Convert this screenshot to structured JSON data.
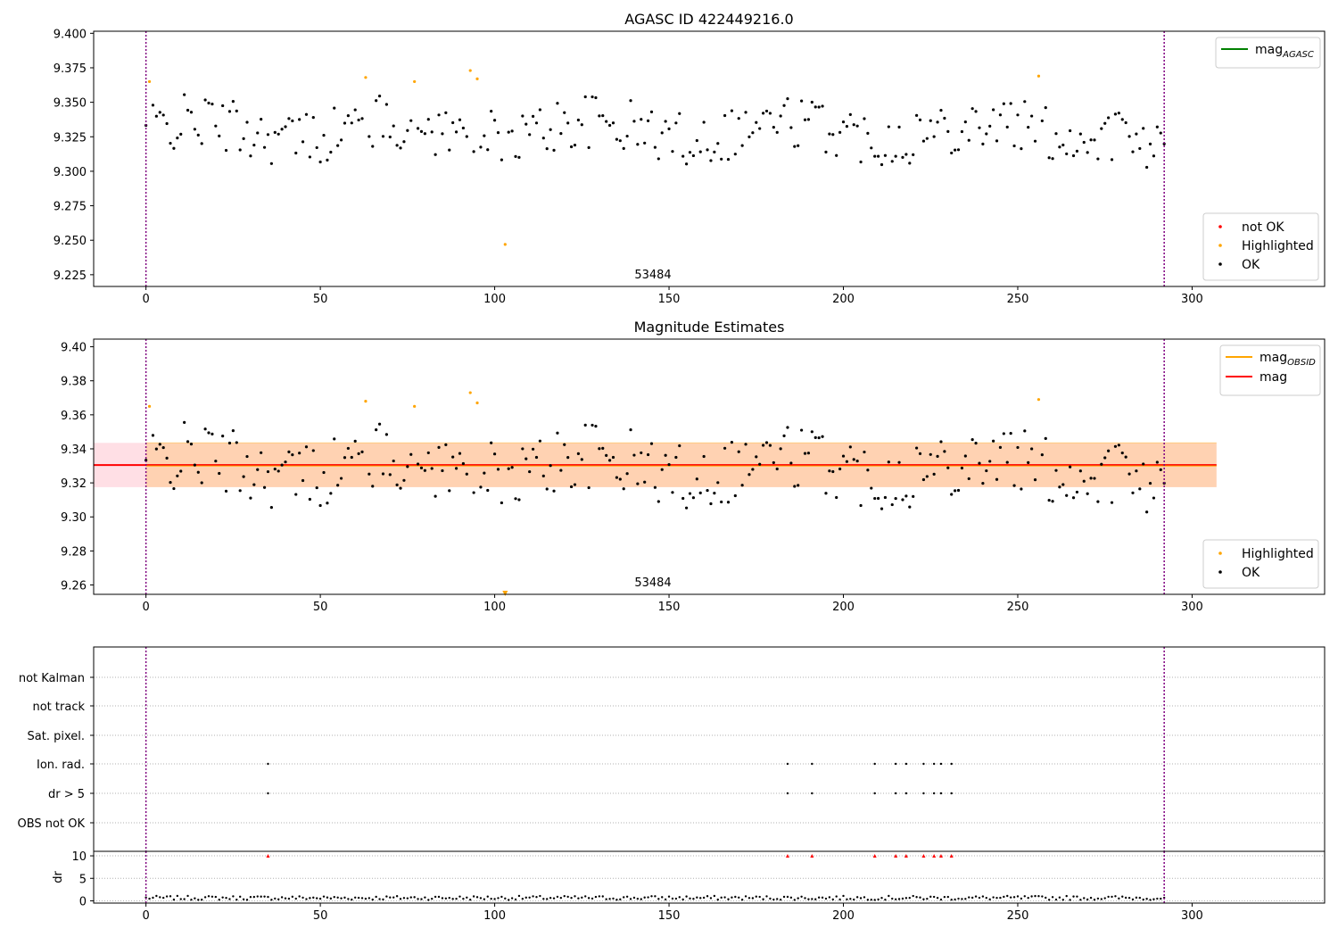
{
  "chart_data": [
    {
      "type": "scatter",
      "title": "AGASC ID 422449216.0",
      "annotation": "53484",
      "xlim": [
        -15,
        338
      ],
      "ylim": [
        9.2165,
        9.4015
      ],
      "xticks": [
        "0",
        "50",
        "100",
        "150",
        "200",
        "250",
        "300"
      ],
      "yticks": [
        "9.225",
        "9.250",
        "9.275",
        "9.300",
        "9.325",
        "9.350",
        "9.375",
        "9.400"
      ],
      "vlines": [
        0,
        292
      ],
      "legend_lines": [
        {
          "name": "mag",
          "subscript": "AGASC",
          "color": "#008000"
        }
      ],
      "legend_points": [
        {
          "name": "not OK",
          "color": "#ff0000"
        },
        {
          "name": "Highlighted",
          "color": "#ffa500"
        },
        {
          "name": "OK",
          "color": "#000000"
        }
      ],
      "highlighted": [
        [
          1,
          9.365
        ],
        [
          63,
          9.368
        ],
        [
          77,
          9.365
        ],
        [
          93,
          9.373
        ],
        [
          95,
          9.367
        ],
        [
          103,
          9.247
        ],
        [
          256,
          9.369
        ]
      ]
    },
    {
      "type": "scatter",
      "title": "Magnitude Estimates",
      "annotation": "53484",
      "xlim": [
        -15,
        338
      ],
      "ylim": [
        9.2545,
        9.4045
      ],
      "xticks": [
        "0",
        "50",
        "100",
        "150",
        "200",
        "250",
        "300"
      ],
      "yticks": [
        "9.26",
        "9.28",
        "9.30",
        "9.32",
        "9.34",
        "9.36",
        "9.38",
        "9.40"
      ],
      "vlines": [
        0,
        292
      ],
      "mag_line": 9.3305,
      "band": [
        9.3175,
        9.3435
      ],
      "band_xrange": [
        -15,
        307
      ],
      "band_inner_xrange": [
        0,
        307
      ],
      "legend_lines": [
        {
          "name": "mag",
          "subscript": "OBSID",
          "color": "#ffa500"
        },
        {
          "name": "mag",
          "subscript": "",
          "color": "#ff0000"
        }
      ],
      "legend_points": [
        {
          "name": "Highlighted",
          "color": "#ffa500"
        },
        {
          "name": "OK",
          "color": "#000000"
        }
      ],
      "highlighted": [
        [
          1,
          9.365
        ],
        [
          63,
          9.368
        ],
        [
          77,
          9.365
        ],
        [
          93,
          9.373
        ],
        [
          95,
          9.367
        ],
        [
          256,
          9.369
        ]
      ],
      "offscale_marker": [
        103,
        9.255
      ]
    },
    {
      "type": "scatter",
      "xlim": [
        -15,
        338
      ],
      "xticks": [
        "0",
        "50",
        "100",
        "150",
        "200",
        "250",
        "300"
      ],
      "vlines": [
        0,
        292
      ],
      "flag_labels": [
        "not Kalman",
        "not track",
        "Sat. pixel.",
        "Ion. rad.",
        "dr > 5",
        "OBS not OK"
      ],
      "ion_rad_x": [
        35,
        184,
        191,
        209,
        215,
        218,
        223,
        226,
        228,
        231
      ],
      "dr_gt5_x": [
        35,
        184,
        191,
        209,
        215,
        218,
        223,
        226,
        228,
        231
      ],
      "dr_ylabel": "dr",
      "dr_yticks": [
        "0",
        "5",
        "10"
      ],
      "dr_ylim": [
        -0.5,
        11
      ],
      "dr_clipped_x": [
        35,
        184,
        191,
        209,
        215,
        218,
        223,
        226,
        228,
        231
      ],
      "dr_clipped_value": 10
    }
  ]
}
